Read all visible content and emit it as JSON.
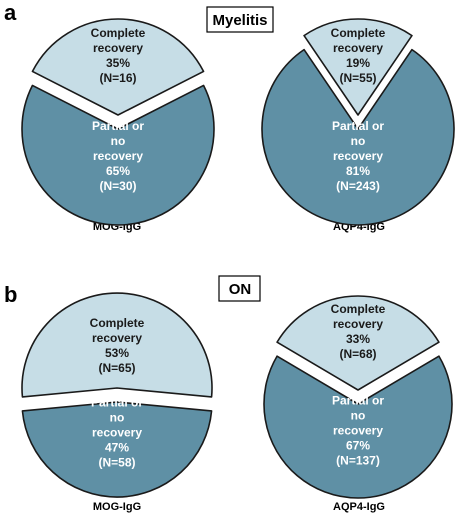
{
  "panels": [
    {
      "letter": "a",
      "title": "Myelitis"
    },
    {
      "letter": "b",
      "title": "ON"
    }
  ],
  "colors": {
    "complete_fill": "#c6dde6",
    "partial_fill": "#5f90a5",
    "outline": "#1a1a1a"
  },
  "chart_data": [
    {
      "type": "pie",
      "panel": "a",
      "title": "Myelitis",
      "xlabel": "MOG-IgG",
      "slices": [
        {
          "label": "Complete recovery",
          "label_lines": [
            "Complete",
            "recovery",
            "35%",
            "(N=16)"
          ],
          "percent": 35,
          "n": 16
        },
        {
          "label": "Partial or no recovery",
          "label_lines": [
            "Partial or",
            "no",
            "recovery",
            "65%",
            "(N=30)"
          ],
          "percent": 65,
          "n": 30
        }
      ]
    },
    {
      "type": "pie",
      "panel": "a",
      "title": "Myelitis",
      "xlabel": "AQP4-IgG",
      "slices": [
        {
          "label": "Complete recovery",
          "label_lines": [
            "Complete",
            "recovery",
            "19%",
            "(N=55)"
          ],
          "percent": 19,
          "n": 55
        },
        {
          "label": "Partial or no recovery",
          "label_lines": [
            "Partial or",
            "no",
            "recovery",
            "81%",
            "(N=243)"
          ],
          "percent": 81,
          "n": 243
        }
      ]
    },
    {
      "type": "pie",
      "panel": "b",
      "title": "ON",
      "xlabel": "MOG-IgG",
      "slices": [
        {
          "label": "Complete recovery",
          "label_lines": [
            "Complete",
            "recovery",
            "53%",
            "(N=65)"
          ],
          "percent": 53,
          "n": 65
        },
        {
          "label": "Partial or no recovery",
          "label_lines": [
            "Partial or",
            "no",
            "recovery",
            "47%",
            "(N=58)"
          ],
          "percent": 47,
          "n": 58
        }
      ]
    },
    {
      "type": "pie",
      "panel": "b",
      "title": "ON",
      "xlabel": "AQP4-IgG",
      "slices": [
        {
          "label": "Complete recovery",
          "label_lines": [
            "Complete",
            "recovery",
            "33%",
            "(N=68)"
          ],
          "percent": 33,
          "n": 68
        },
        {
          "label": "Partial or no recovery",
          "label_lines": [
            "Partial or",
            "no",
            "recovery",
            "67%",
            "(N=137)"
          ],
          "percent": 67,
          "n": 137
        }
      ]
    }
  ]
}
